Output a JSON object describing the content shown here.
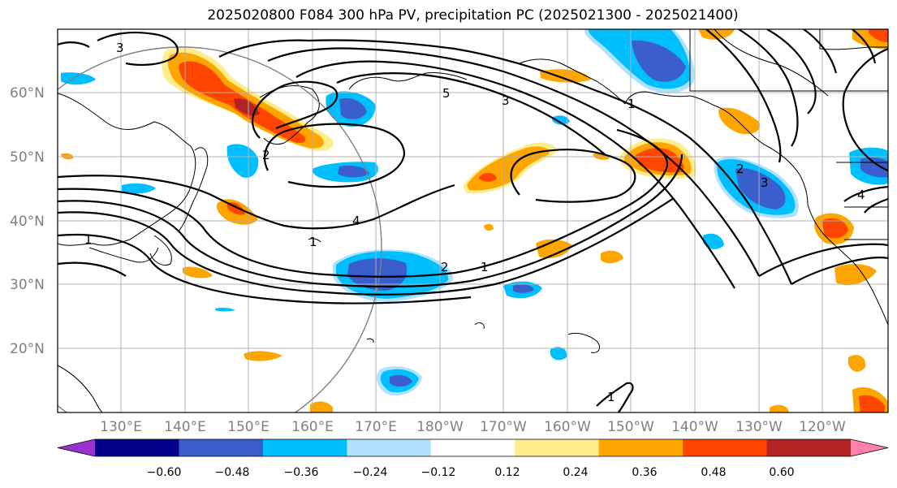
{
  "title": "2025020800 F084 300 hPa PV, precipitation PC (2025021300 - 2025021400)",
  "lat_labels": [
    "60°N",
    "50°N",
    "40°N",
    "30°N",
    "20°N"
  ],
  "lon_labels": [
    "130°E",
    "140°E",
    "150°E",
    "160°E",
    "170°E",
    "180°W",
    "170°W",
    "160°W",
    "150°W",
    "140°W",
    "130°W",
    "120°W"
  ],
  "colorbar": {
    "ticks": [
      "−0.60",
      "−0.48",
      "−0.36",
      "−0.24",
      "−0.12",
      "0.12",
      "0.24",
      "0.36",
      "0.48",
      "0.60"
    ],
    "colors": [
      "#9932cc",
      "#00008b",
      "#3a5fcd",
      "#00bfff",
      "#b0e2ff",
      "#ffffff",
      "#ffec8b",
      "#ffa500",
      "#ff4500",
      "#b22222",
      "#ff82ab"
    ]
  },
  "contour_labels": [
    "3",
    "2",
    "5",
    "3",
    "1",
    "4",
    "2",
    "1",
    "1",
    "2",
    "3",
    "4",
    "1",
    "1"
  ],
  "map_data": {
    "type": "contour_map",
    "extent": {
      "lon": [
        "~121°E",
        "~112°W"
      ],
      "lat": [
        "~10°N",
        "~70°N"
      ]
    },
    "fields": [
      "300 hPa PV (black contours)",
      "precipitation PC (filled)"
    ]
  }
}
